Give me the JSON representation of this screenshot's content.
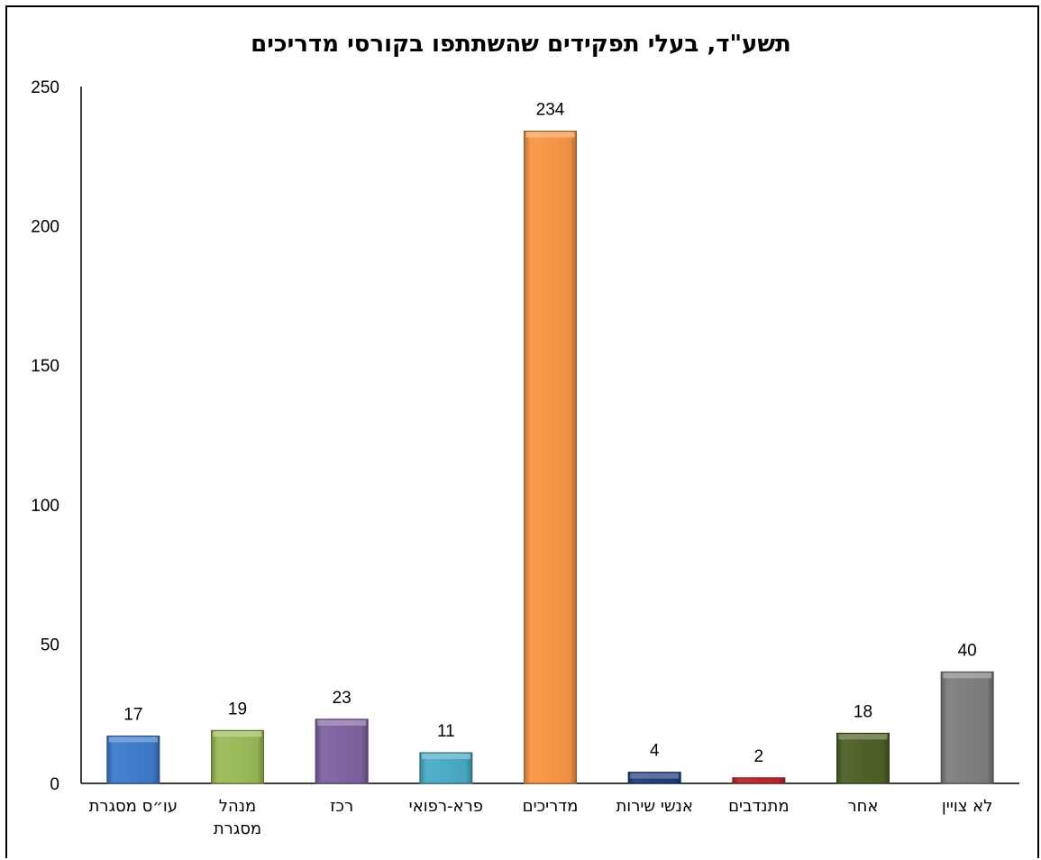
{
  "chart_data": {
    "type": "bar",
    "title": "תשע\"ד, בעלי תפקידים שהשתתפו בקורסי מדריכים",
    "xlabel": "",
    "ylabel": "",
    "ylim": [
      0,
      250
    ],
    "yticks": [
      "0",
      "50",
      "100",
      "150",
      "200",
      "250"
    ],
    "grid": false,
    "legend": "none",
    "categories": [
      [
        "עו״ס מסגרת"
      ],
      [
        "מנהל",
        "מסגרת"
      ],
      [
        "רכז"
      ],
      [
        "פרא-רפואי"
      ],
      [
        "מדריכים"
      ],
      [
        "אנשי שירות"
      ],
      [
        "מתנדבים"
      ],
      [
        "אחר"
      ],
      [
        "לא צויין"
      ]
    ],
    "values": [
      17,
      19,
      23,
      11,
      234,
      4,
      2,
      18,
      40
    ],
    "data_labels": [
      "17",
      "19",
      "23",
      "11",
      "234",
      "4",
      "2",
      "18",
      "40"
    ],
    "colors": [
      "#3f7ccc",
      "#9bbb59",
      "#8064a2",
      "#4bacc6",
      "#f79646",
      "#1f3f7f",
      "#c0282d",
      "#4f6228",
      "#7f7f7f"
    ]
  }
}
